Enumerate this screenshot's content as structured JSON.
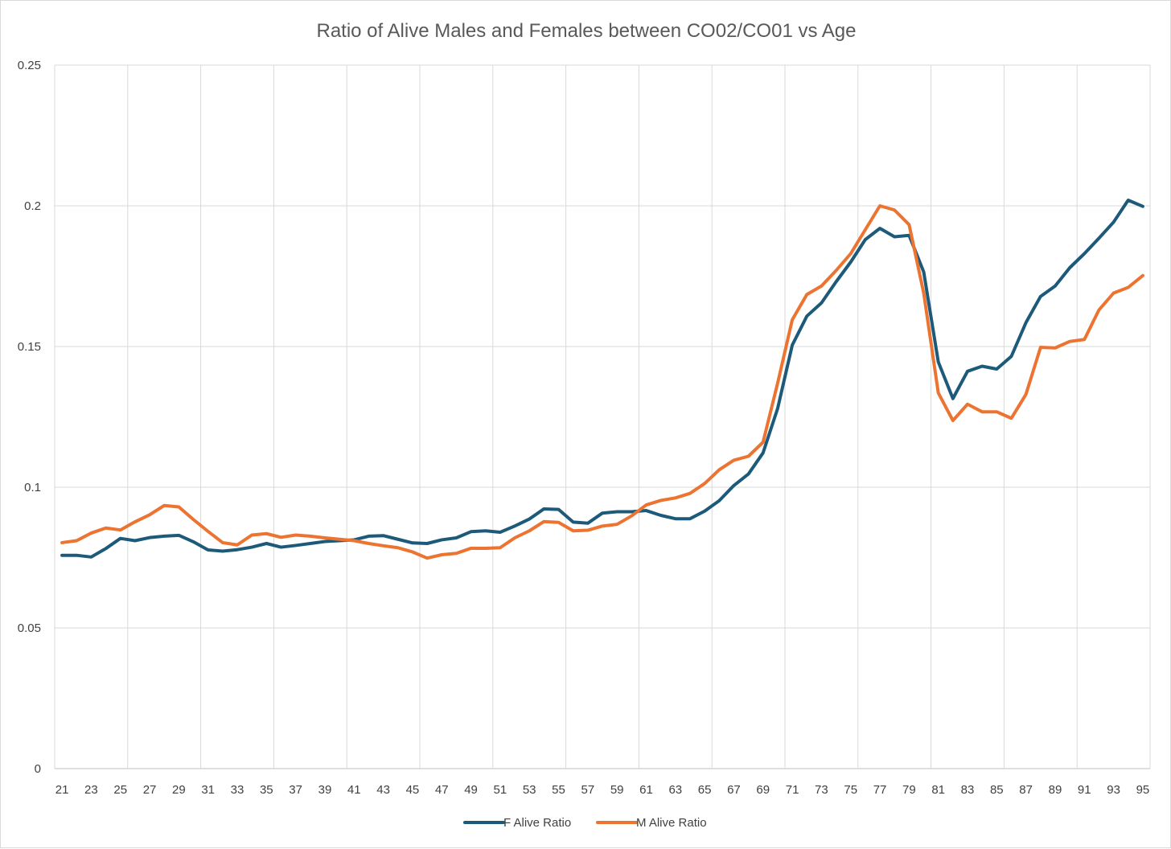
{
  "chart_data": {
    "type": "line",
    "title": "Ratio of Alive Males and Females between CO02/CO01 vs Age",
    "xlabel": "",
    "ylabel": "",
    "x": [
      21,
      22,
      23,
      24,
      25,
      26,
      27,
      28,
      29,
      30,
      31,
      32,
      33,
      34,
      35,
      36,
      37,
      38,
      39,
      40,
      41,
      42,
      43,
      44,
      45,
      46,
      47,
      48,
      49,
      50,
      51,
      52,
      53,
      54,
      55,
      56,
      57,
      58,
      59,
      60,
      61,
      62,
      63,
      64,
      65,
      66,
      67,
      68,
      69,
      70,
      71,
      72,
      73,
      74,
      75,
      76,
      77,
      78,
      79,
      80,
      81,
      82,
      83,
      84,
      85,
      86,
      87,
      88,
      89,
      90,
      91,
      92,
      93,
      94,
      95
    ],
    "x_tick_labels": [
      "21",
      "23",
      "25",
      "27",
      "29",
      "31",
      "33",
      "35",
      "37",
      "39",
      "41",
      "43",
      "45",
      "47",
      "49",
      "51",
      "53",
      "55",
      "57",
      "59",
      "61",
      "63",
      "65",
      "67",
      "69",
      "71",
      "73",
      "75",
      "77",
      "79",
      "81",
      "83",
      "85",
      "87",
      "89",
      "91",
      "93",
      "95"
    ],
    "ylim": [
      0,
      0.25
    ],
    "y_ticks": [
      0,
      0.05,
      0.1,
      0.15,
      0.2,
      0.25
    ],
    "y_tick_labels": [
      "0",
      "0.05",
      "0.1",
      "0.15",
      "0.2",
      "0.25"
    ],
    "grid": true,
    "legend_position": "bottom",
    "series": [
      {
        "name": "F Alive Ratio",
        "color": "#1d5a7a",
        "values": [
          0.0758,
          0.0758,
          0.0752,
          0.0782,
          0.0818,
          0.081,
          0.0821,
          0.0826,
          0.0829,
          0.0806,
          0.0777,
          0.0773,
          0.0778,
          0.0787,
          0.08,
          0.0787,
          0.0793,
          0.08,
          0.0807,
          0.081,
          0.0813,
          0.0826,
          0.0828,
          0.0815,
          0.0802,
          0.08,
          0.0813,
          0.082,
          0.0842,
          0.0845,
          0.084,
          0.0862,
          0.0887,
          0.0923,
          0.0921,
          0.0876,
          0.0872,
          0.0908,
          0.0913,
          0.0913,
          0.0917,
          0.09,
          0.0888,
          0.0888,
          0.0915,
          0.0952,
          0.1006,
          0.1047,
          0.1122,
          0.128,
          0.1505,
          0.1608,
          0.1655,
          0.173,
          0.18,
          0.188,
          0.192,
          0.189,
          0.1895,
          0.1765,
          0.1445,
          0.1315,
          0.1412,
          0.143,
          0.142,
          0.1465,
          0.1585,
          0.1678,
          0.1715,
          0.178,
          0.183,
          0.1885,
          0.1942,
          0.202,
          0.1998
        ]
      },
      {
        "name": "M Alive Ratio",
        "color": "#ed7331",
        "values": [
          0.0803,
          0.081,
          0.0837,
          0.0855,
          0.0848,
          0.0877,
          0.0902,
          0.0935,
          0.093,
          0.0885,
          0.0843,
          0.0803,
          0.0795,
          0.083,
          0.0835,
          0.0822,
          0.083,
          0.0826,
          0.082,
          0.0815,
          0.081,
          0.08,
          0.0792,
          0.0785,
          0.077,
          0.0748,
          0.076,
          0.0765,
          0.0783,
          0.0783,
          0.0785,
          0.082,
          0.0845,
          0.0878,
          0.0875,
          0.0845,
          0.0847,
          0.0862,
          0.0868,
          0.0898,
          0.0937,
          0.0953,
          0.0962,
          0.0978,
          0.1013,
          0.1062,
          0.1096,
          0.111,
          0.116,
          0.137,
          0.1595,
          0.1685,
          0.1715,
          0.177,
          0.183,
          0.1915,
          0.2,
          0.1985,
          0.1933,
          0.169,
          0.1335,
          0.1237,
          0.1295,
          0.1268,
          0.1268,
          0.1245,
          0.133,
          0.1497,
          0.1495,
          0.1518,
          0.1525,
          0.163,
          0.169,
          0.171,
          0.1752
        ]
      }
    ]
  }
}
